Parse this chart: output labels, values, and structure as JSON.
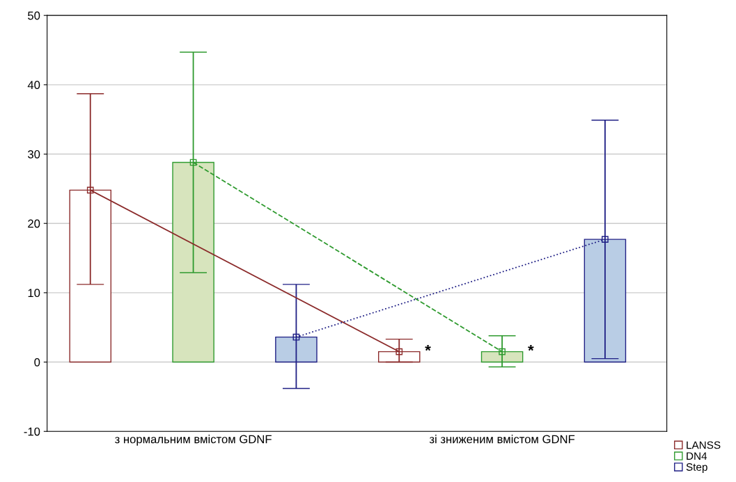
{
  "chart_data": {
    "type": "bar",
    "categories": [
      "з нормальним вмістом GDNF",
      "зі зниженим вмістом GDNF"
    ],
    "series": [
      {
        "color": "#ffffff",
        "values": [
          24.8,
          1.5
        ]
      },
      {
        "color": "#d7e4bd",
        "values": [
          28.8,
          1.5
        ]
      },
      {
        "color": "#b9cde5",
        "values": [
          3.6,
          17.7
        ]
      },
      {
        "type": "line",
        "name": "LANSS",
        "color": "#8b2a2a",
        "line_style": "solid",
        "values": [
          24.8,
          1.5
        ],
        "errors": [
          [
            11.2,
            38.7
          ],
          [
            0.0,
            3.3
          ]
        ],
        "value_labels": [
          null,
          "*"
        ]
      },
      {
        "type": "line",
        "name": "DN4",
        "color": "#2e9a2e",
        "line_style": "dashed",
        "values": [
          28.8,
          1.5
        ],
        "errors": [
          [
            12.9,
            44.7
          ],
          [
            -0.7,
            3.8
          ]
        ],
        "value_labels": [
          null,
          "*"
        ]
      },
      {
        "type": "line",
        "name": "Step",
        "color": "#1f1f85",
        "line_style": "dotted",
        "values": [
          3.6,
          17.7
        ],
        "errors": [
          [
            -3.8,
            11.2
          ],
          [
            0.5,
            34.9
          ]
        ]
      }
    ],
    "marker": "square",
    "ylim": [
      -10,
      50
    ],
    "yticks": [
      -10,
      0,
      10,
      20,
      30,
      40,
      50
    ],
    "grid": "y",
    "legend": "bottom right"
  }
}
